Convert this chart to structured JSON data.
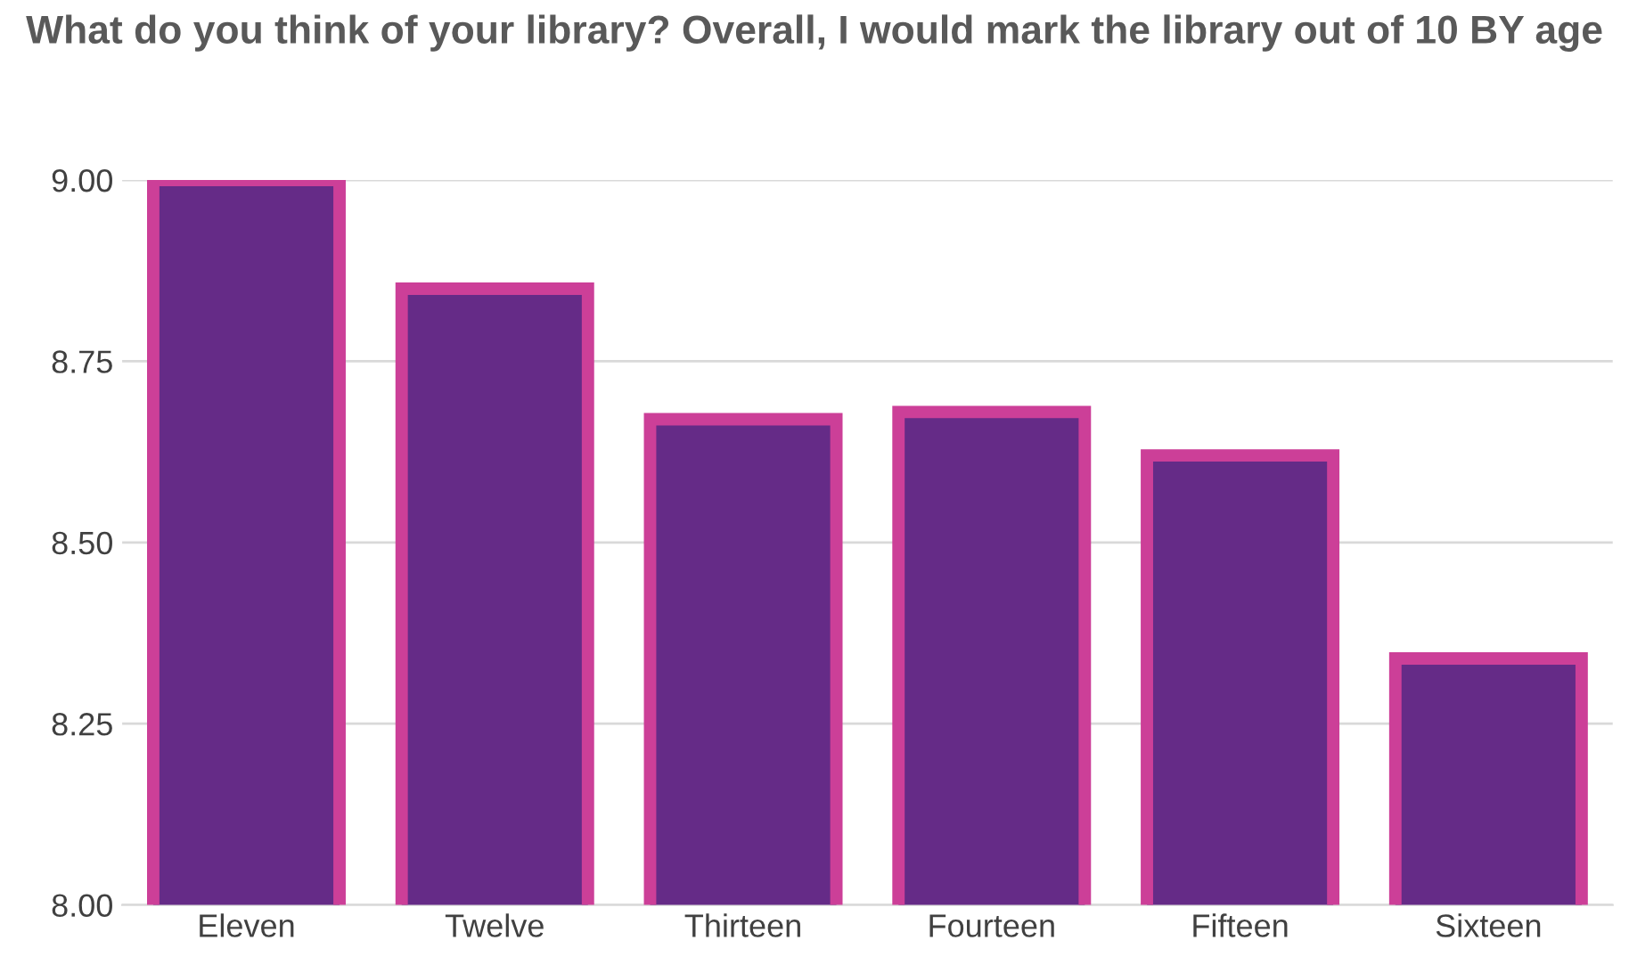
{
  "chart_data": {
    "type": "bar",
    "title": "What do you think of your library? Overall, I would mark the library out of 10 BY age",
    "categories": [
      "Eleven",
      "Twelve",
      "Thirteen",
      "Fourteen",
      "Fifteen",
      "Sixteen"
    ],
    "series": [
      {
        "color": "#652b87",
        "values": [
          9.0,
          8.85,
          8.67,
          8.68,
          8.62,
          8.34
        ]
      }
    ],
    "ylim": [
      8.0,
      9.0
    ],
    "yticks": [
      {
        "value": 8.0,
        "label": "8.00"
      },
      {
        "value": 8.25,
        "label": "8.25"
      },
      {
        "value": 8.5,
        "label": "8.50"
      },
      {
        "value": 8.75,
        "label": "8.75"
      },
      {
        "value": 9.0,
        "label": "9.00"
      }
    ],
    "grid": "y",
    "legend": false
  }
}
